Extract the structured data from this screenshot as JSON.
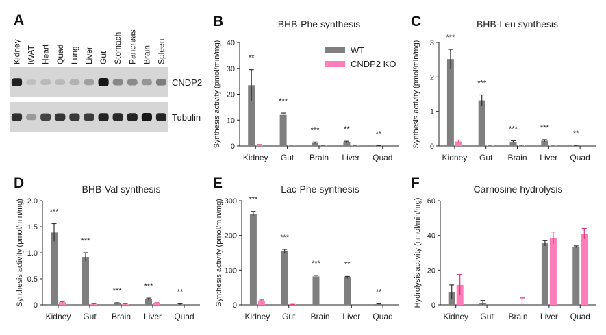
{
  "blot": {
    "letter": "A",
    "lanes": [
      "Kidney",
      "iWAT",
      "Heart",
      "Quad",
      "Lung",
      "Liver",
      "Gut",
      "Stomach",
      "Pancreas",
      "Brain",
      "Spleen"
    ],
    "rows": [
      {
        "label": "CNDP2",
        "intensity": [
          0.92,
          0.12,
          0.15,
          0.14,
          0.18,
          0.28,
          0.98,
          0.4,
          0.38,
          0.32,
          0.45
        ]
      },
      {
        "label": "Tubulin",
        "intensity": [
          0.85,
          0.3,
          0.75,
          0.82,
          0.8,
          0.78,
          0.9,
          0.88,
          0.9,
          0.98,
          0.9
        ]
      }
    ]
  },
  "legend": {
    "wt": "WT",
    "ko": "CNDP2 KO"
  },
  "colors": {
    "wt": "#7f7f7f",
    "ko": "#ff7eb9",
    "ink": "#222222",
    "blot_bg": "#d6d6d6",
    "band": "#111111"
  },
  "chart_data": [
    {
      "letter": "B",
      "type": "bar",
      "title": "BHB-Phe synthesis",
      "ylabel": "Synthesis activity (pmol/min/mg)",
      "categories": [
        "Kidney",
        "Gut",
        "Brain",
        "Liver",
        "Quad"
      ],
      "ylim": [
        0,
        40
      ],
      "yticks": [
        "0",
        "10",
        "20",
        "30",
        "40"
      ],
      "series": [
        {
          "name": "WT",
          "values": [
            23.5,
            12.0,
            1.2,
            1.5,
            0.1
          ],
          "errors": [
            6.0,
            0.7,
            0.3,
            0.3,
            0.05
          ]
        },
        {
          "name": "CNDP2 KO",
          "values": [
            0.4,
            0.2,
            0.1,
            0.1,
            0.0
          ],
          "errors": [
            0.15,
            0.1,
            0.05,
            0.05,
            0.0
          ]
        }
      ],
      "significance": [
        "**",
        "***",
        "***",
        "**",
        "**"
      ]
    },
    {
      "letter": "C",
      "type": "bar",
      "title": "BHB-Leu synthesis",
      "ylabel": "Synthesis activity (pmol/min/mg)",
      "categories": [
        "Kidney",
        "Gut",
        "Brain",
        "Liver",
        "Quad"
      ],
      "ylim": [
        0,
        3
      ],
      "yticks": [
        "0",
        "1",
        "2",
        "3"
      ],
      "series": [
        {
          "name": "WT",
          "values": [
            2.52,
            1.32,
            0.12,
            0.15,
            0.01
          ],
          "errors": [
            0.28,
            0.16,
            0.03,
            0.03,
            0.01
          ]
        },
        {
          "name": "CNDP2 KO",
          "values": [
            0.13,
            0.01,
            0.01,
            0.01,
            0.0
          ],
          "errors": [
            0.04,
            0.01,
            0.01,
            0.01,
            0.0
          ]
        }
      ],
      "significance": [
        "***",
        "***",
        "***",
        "***",
        "**"
      ]
    },
    {
      "letter": "D",
      "type": "bar",
      "title": "BHB-Val synthesis",
      "ylabel": "Synthesis activity (pmol/min/mg)",
      "categories": [
        "Kidney",
        "Gut",
        "Brain",
        "Liver",
        "Quad"
      ],
      "ylim": [
        0,
        2.0
      ],
      "yticks": [
        "0",
        "0.5",
        "1.0",
        "1.5",
        "2.0"
      ],
      "series": [
        {
          "name": "WT",
          "values": [
            1.39,
            0.92,
            0.03,
            0.11,
            0.01
          ],
          "errors": [
            0.17,
            0.08,
            0.01,
            0.02,
            0.01
          ]
        },
        {
          "name": "CNDP2 KO",
          "values": [
            0.05,
            0.01,
            0.01,
            0.03,
            0.0
          ],
          "errors": [
            0.01,
            0.01,
            0.01,
            0.01,
            0.0
          ]
        }
      ],
      "significance": [
        "***",
        "***",
        "***",
        "***",
        "**"
      ]
    },
    {
      "letter": "E",
      "type": "bar",
      "title": "Lac-Phe synthesis",
      "ylabel": "Synthesis activity (pmol/min/mg)",
      "categories": [
        "Kidney",
        "Gut",
        "Brain",
        "Liver",
        "Quad"
      ],
      "ylim": [
        0,
        300
      ],
      "yticks": [
        "0",
        "100",
        "200",
        "300"
      ],
      "series": [
        {
          "name": "WT",
          "values": [
            262,
            155,
            82,
            79,
            2
          ],
          "errors": [
            7,
            5,
            3,
            3,
            1
          ]
        },
        {
          "name": "CNDP2 KO",
          "values": [
            12,
            1,
            0,
            0,
            0
          ],
          "errors": [
            2,
            0.5,
            0,
            0,
            0
          ]
        }
      ],
      "significance": [
        "***",
        "***",
        "***",
        "**",
        "**"
      ]
    },
    {
      "letter": "F",
      "type": "bar",
      "title": "Carnosine hydrolysis",
      "ylabel": "Hydrolysis activity (nmol/min/mg)",
      "categories": [
        "Kidney",
        "Gut",
        "Brain",
        "Liver",
        "Quad"
      ],
      "ylim": [
        0,
        60
      ],
      "yticks": [
        "0",
        "20",
        "40",
        "60"
      ],
      "series": [
        {
          "name": "WT",
          "values": [
            7.5,
            1,
            0,
            35.5,
            33.5
          ],
          "errors": [
            4,
            1.5,
            0,
            1.5,
            0.5
          ]
        },
        {
          "name": "CNDP2 KO",
          "values": [
            11.5,
            0,
            0,
            38.5,
            41
          ],
          "errors": [
            6,
            0,
            4,
            3.5,
            3
          ]
        }
      ],
      "significance": [
        "",
        "",
        "",
        "",
        ""
      ]
    }
  ]
}
